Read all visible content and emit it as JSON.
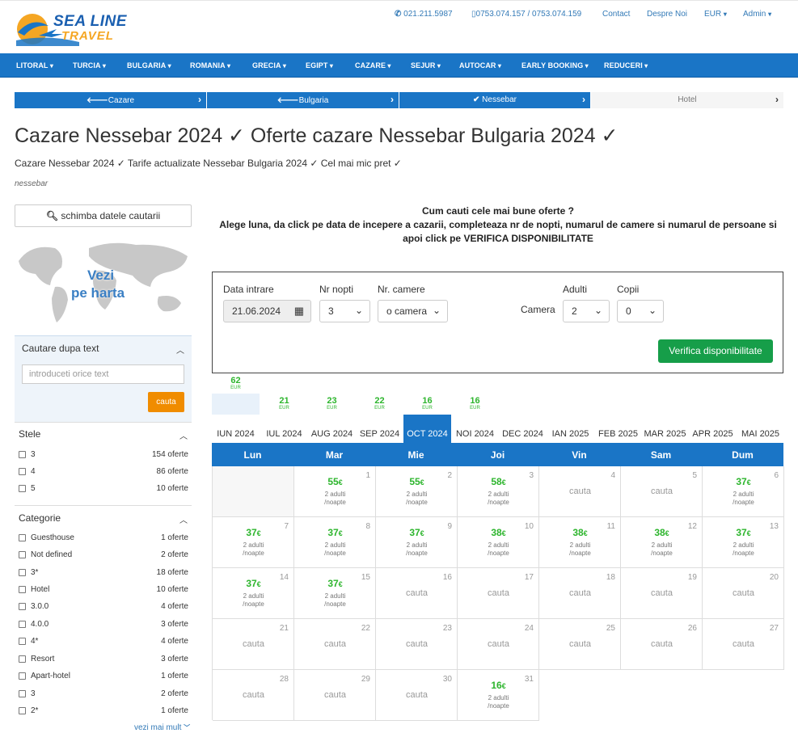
{
  "header": {
    "logo_line1": "SEA LINE",
    "logo_line2": "TRAVEL",
    "phone1": "021.211.5987",
    "phone2": "0753.074.157 / 0753.074.159",
    "contact": "Contact",
    "about": "Despre Noi",
    "currency": "EUR",
    "admin": "Admin"
  },
  "nav": [
    "LITORAL",
    "TURCIA",
    "BULGARIA",
    "ROMANIA",
    "GRECIA",
    "EGIPT",
    "CAZARE",
    "SEJUR",
    "AUTOCAR",
    "EARLY BOOKING",
    "REDUCERI"
  ],
  "breadcrumb": [
    "Cazare",
    "Bulgaria",
    "Nessebar",
    "Hotel"
  ],
  "page": {
    "title": "Cazare Nessebar 2024 ✓ Oferte cazare Nessebar Bulgaria 2024 ✓",
    "subtitle": "Cazare Nessebar 2024 ✓ Tarife actualizate Nessebar Bulgaria 2024 ✓ Cel mai mic pret ✓",
    "tag": "nessebar"
  },
  "sidebar": {
    "change_button": "schimba datele cautarii",
    "map_label_1": "Vezi",
    "map_label_2": "pe harta",
    "text_search_title": "Cautare dupa text",
    "text_search_placeholder": "introduceti orice text",
    "text_search_button": "cauta",
    "stars_title": "Stele",
    "stars": [
      {
        "name": "3",
        "count": "154 oferte"
      },
      {
        "name": "4",
        "count": "86 oferte"
      },
      {
        "name": "5",
        "count": "10 oferte"
      }
    ],
    "category_title": "Categorie",
    "categories": [
      {
        "name": "Guesthouse",
        "count": "1 oferte"
      },
      {
        "name": "Not defined",
        "count": "2 oferte"
      },
      {
        "name": "3*",
        "count": "18 oferte"
      },
      {
        "name": "Hotel",
        "count": "10 oferte"
      },
      {
        "name": "3.0.0",
        "count": "4 oferte"
      },
      {
        "name": "4.0.0",
        "count": "3 oferte"
      },
      {
        "name": "4*",
        "count": "4 oferte"
      },
      {
        "name": "Resort",
        "count": "3 oferte"
      },
      {
        "name": "Apart-hotel",
        "count": "1 oferte"
      },
      {
        "name": "3",
        "count": "2 oferte"
      },
      {
        "name": "2*",
        "count": "1 oferte"
      }
    ],
    "more_link": "vezi mai mult"
  },
  "intro": {
    "line1": "Cum cauti cele mai bune oferte ?",
    "line2": "Alege luna, da click pe data de incepere a cazarii, completeaza nr de nopti, numarul de camere si numarul de persoane si apoi click pe",
    "line2_strong": "VERIFICA DISPONIBILITATE"
  },
  "form": {
    "date_label": "Data intrare",
    "date_value": "21.06.2024",
    "nights_label": "Nr nopti",
    "nights_value": "3",
    "rooms_label": "Nr. camere",
    "rooms_value": "o camera",
    "room_label": "Camera",
    "adults_label": "Adulti",
    "adults_value": "2",
    "children_label": "Copii",
    "children_value": "0",
    "verify_button": "Verifica disponibilitate"
  },
  "months": [
    {
      "label": "IUN 2024",
      "price": "62",
      "cur": "EUR"
    },
    {
      "label": "IUL 2024",
      "price": "21",
      "cur": "EUR"
    },
    {
      "label": "AUG 2024",
      "price": "23",
      "cur": "EUR"
    },
    {
      "label": "SEP 2024",
      "price": "22",
      "cur": "EUR"
    },
    {
      "label": "OCT 2024",
      "price": "16",
      "cur": "EUR"
    },
    {
      "label": "NOI 2024",
      "price": "16",
      "cur": "EUR"
    },
    {
      "label": "DEC 2024",
      "price": "",
      "cur": ""
    },
    {
      "label": "IAN 2025",
      "price": "",
      "cur": ""
    },
    {
      "label": "FEB 2025",
      "price": "",
      "cur": ""
    },
    {
      "label": "MAR 2025",
      "price": "",
      "cur": ""
    },
    {
      "label": "APR 2025",
      "price": "",
      "cur": ""
    },
    {
      "label": "MAI 2025",
      "price": "",
      "cur": ""
    }
  ],
  "selected_month": 4,
  "weekdays": [
    "Lun",
    "Mar",
    "Mie",
    "Joi",
    "Vin",
    "Sam",
    "Dum"
  ],
  "calendar": {
    "offset": 1,
    "per_person": "2 adulti\n/noapte",
    "search_text": "cauta",
    "currency_symbol": "€",
    "days": [
      {
        "d": "1",
        "p": "55"
      },
      {
        "d": "2",
        "p": "55"
      },
      {
        "d": "3",
        "p": "58"
      },
      {
        "d": "4",
        "p": ""
      },
      {
        "d": "5",
        "p": ""
      },
      {
        "d": "6",
        "p": "37"
      },
      {
        "d": "7",
        "p": "37"
      },
      {
        "d": "8",
        "p": "37"
      },
      {
        "d": "9",
        "p": "37"
      },
      {
        "d": "10",
        "p": "38"
      },
      {
        "d": "11",
        "p": "38"
      },
      {
        "d": "12",
        "p": "38"
      },
      {
        "d": "13",
        "p": "37"
      },
      {
        "d": "14",
        "p": "37"
      },
      {
        "d": "15",
        "p": "37"
      },
      {
        "d": "16",
        "p": ""
      },
      {
        "d": "17",
        "p": ""
      },
      {
        "d": "18",
        "p": ""
      },
      {
        "d": "19",
        "p": ""
      },
      {
        "d": "20",
        "p": ""
      },
      {
        "d": "21",
        "p": ""
      },
      {
        "d": "22",
        "p": ""
      },
      {
        "d": "23",
        "p": ""
      },
      {
        "d": "24",
        "p": ""
      },
      {
        "d": "25",
        "p": ""
      },
      {
        "d": "26",
        "p": ""
      },
      {
        "d": "27",
        "p": ""
      },
      {
        "d": "28",
        "p": ""
      },
      {
        "d": "29",
        "p": ""
      },
      {
        "d": "30",
        "p": ""
      },
      {
        "d": "31",
        "p": "16"
      }
    ]
  },
  "colors": {
    "brand": "#1a75c6",
    "price": "#2db52d",
    "button_search": "#f08c00",
    "button_verify": "#169e49"
  }
}
